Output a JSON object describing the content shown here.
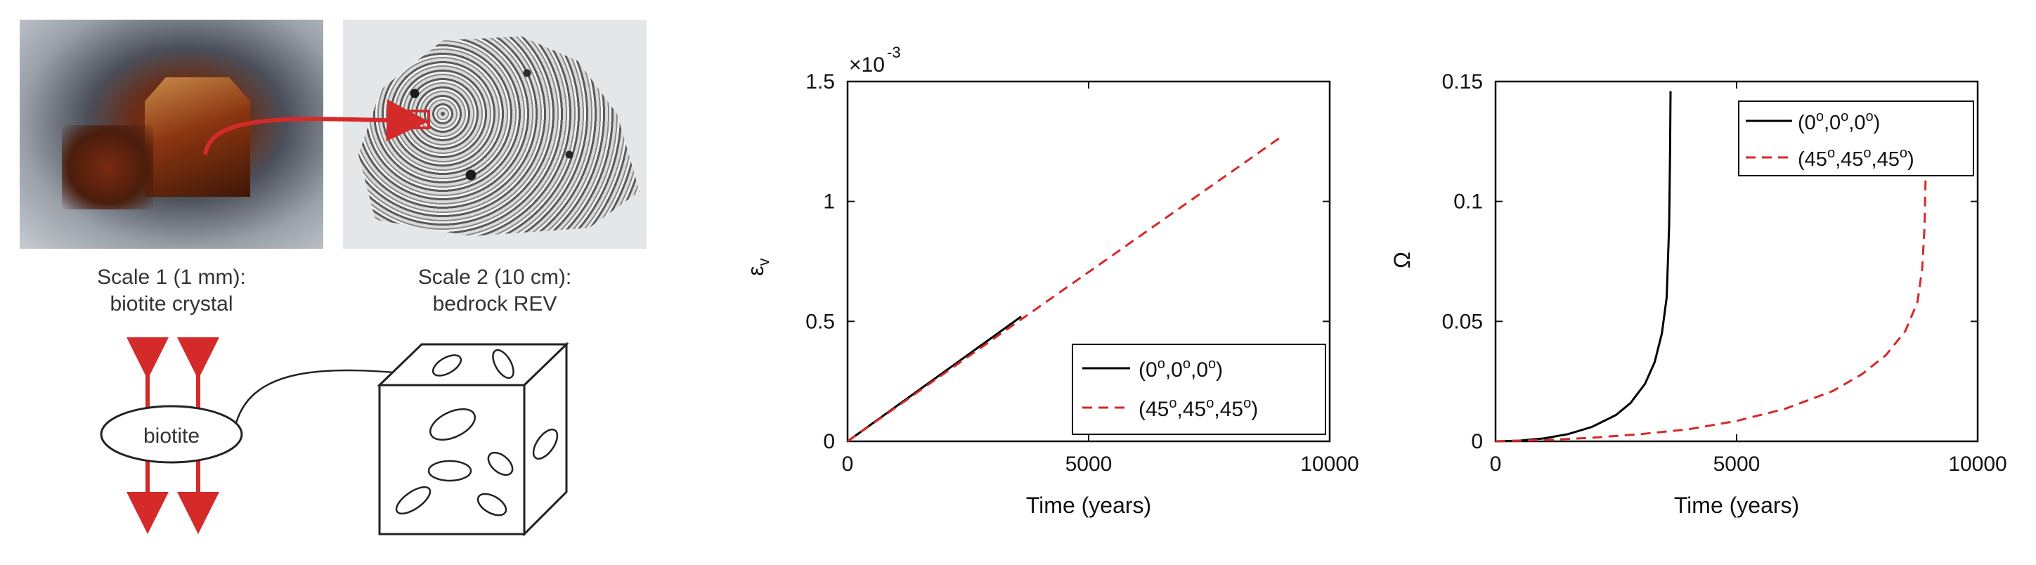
{
  "figure": {
    "scale1_caption_line1": "Scale 1 (1 mm):",
    "scale1_caption_line2": "biotite crystal",
    "scale2_caption_line1": "Scale 2 (10 cm):",
    "scale2_caption_line2": "bedrock REV",
    "biotite_label": "biotite",
    "arrow_color": "#d42a2a"
  },
  "chart_data": [
    {
      "type": "line",
      "ylabel_symbol": "ε",
      "ylabel_subscript": "v",
      "xlabel": "Time (years)",
      "y_exponent_base": "×10",
      "y_exponent_power": "-3",
      "xlim": [
        0,
        10000
      ],
      "ylim": [
        0,
        1.5
      ],
      "xticks": [
        0,
        5000,
        10000
      ],
      "xtick_labels": [
        "0",
        "5000",
        "10000"
      ],
      "yticks": [
        0,
        0.5,
        1,
        1.5
      ],
      "ytick_labels": [
        "0",
        "0.5",
        "1",
        "1.5"
      ],
      "legend_position": "bottom-right",
      "series": [
        {
          "name": "(0°,0°,0°)",
          "angle": "0",
          "color": "#000000",
          "style": "solid",
          "x": [
            0,
            3600
          ],
          "y": [
            0,
            0.52
          ]
        },
        {
          "name": "(45°,45°,45°)",
          "angle": "45",
          "color": "#d42a2a",
          "style": "dashed",
          "x": [
            0,
            9000
          ],
          "y": [
            0,
            1.27
          ]
        }
      ]
    },
    {
      "type": "line",
      "ylabel": "Ω",
      "xlabel": "Time (years)",
      "xlim": [
        0,
        10000
      ],
      "ylim": [
        0,
        0.15
      ],
      "xticks": [
        0,
        5000,
        10000
      ],
      "xtick_labels": [
        "0",
        "5000",
        "10000"
      ],
      "yticks": [
        0,
        0.05,
        0.1,
        0.15
      ],
      "ytick_labels": [
        "0",
        "0.05",
        "0.1",
        "0.15"
      ],
      "legend_position": "top-right",
      "series": [
        {
          "name": "(0°,0°,0°)",
          "angle": "0",
          "color": "#000000",
          "style": "solid",
          "x": [
            0,
            500,
            1000,
            1500,
            2000,
            2500,
            2800,
            3100,
            3300,
            3450,
            3550,
            3600,
            3620,
            3630
          ],
          "y": [
            0,
            0.0003,
            0.0012,
            0.003,
            0.006,
            0.011,
            0.016,
            0.024,
            0.033,
            0.045,
            0.06,
            0.09,
            0.12,
            0.146
          ]
        },
        {
          "name": "(45°,45°,45°)",
          "angle": "45",
          "color": "#d42a2a",
          "style": "dashed",
          "x": [
            0,
            1000,
            2000,
            3000,
            4000,
            5000,
            6000,
            7000,
            7600,
            8100,
            8500,
            8750,
            8850,
            8900,
            8920
          ],
          "y": [
            0,
            0.0005,
            0.0015,
            0.003,
            0.005,
            0.0085,
            0.0135,
            0.021,
            0.028,
            0.036,
            0.046,
            0.058,
            0.072,
            0.09,
            0.11
          ]
        }
      ]
    }
  ]
}
